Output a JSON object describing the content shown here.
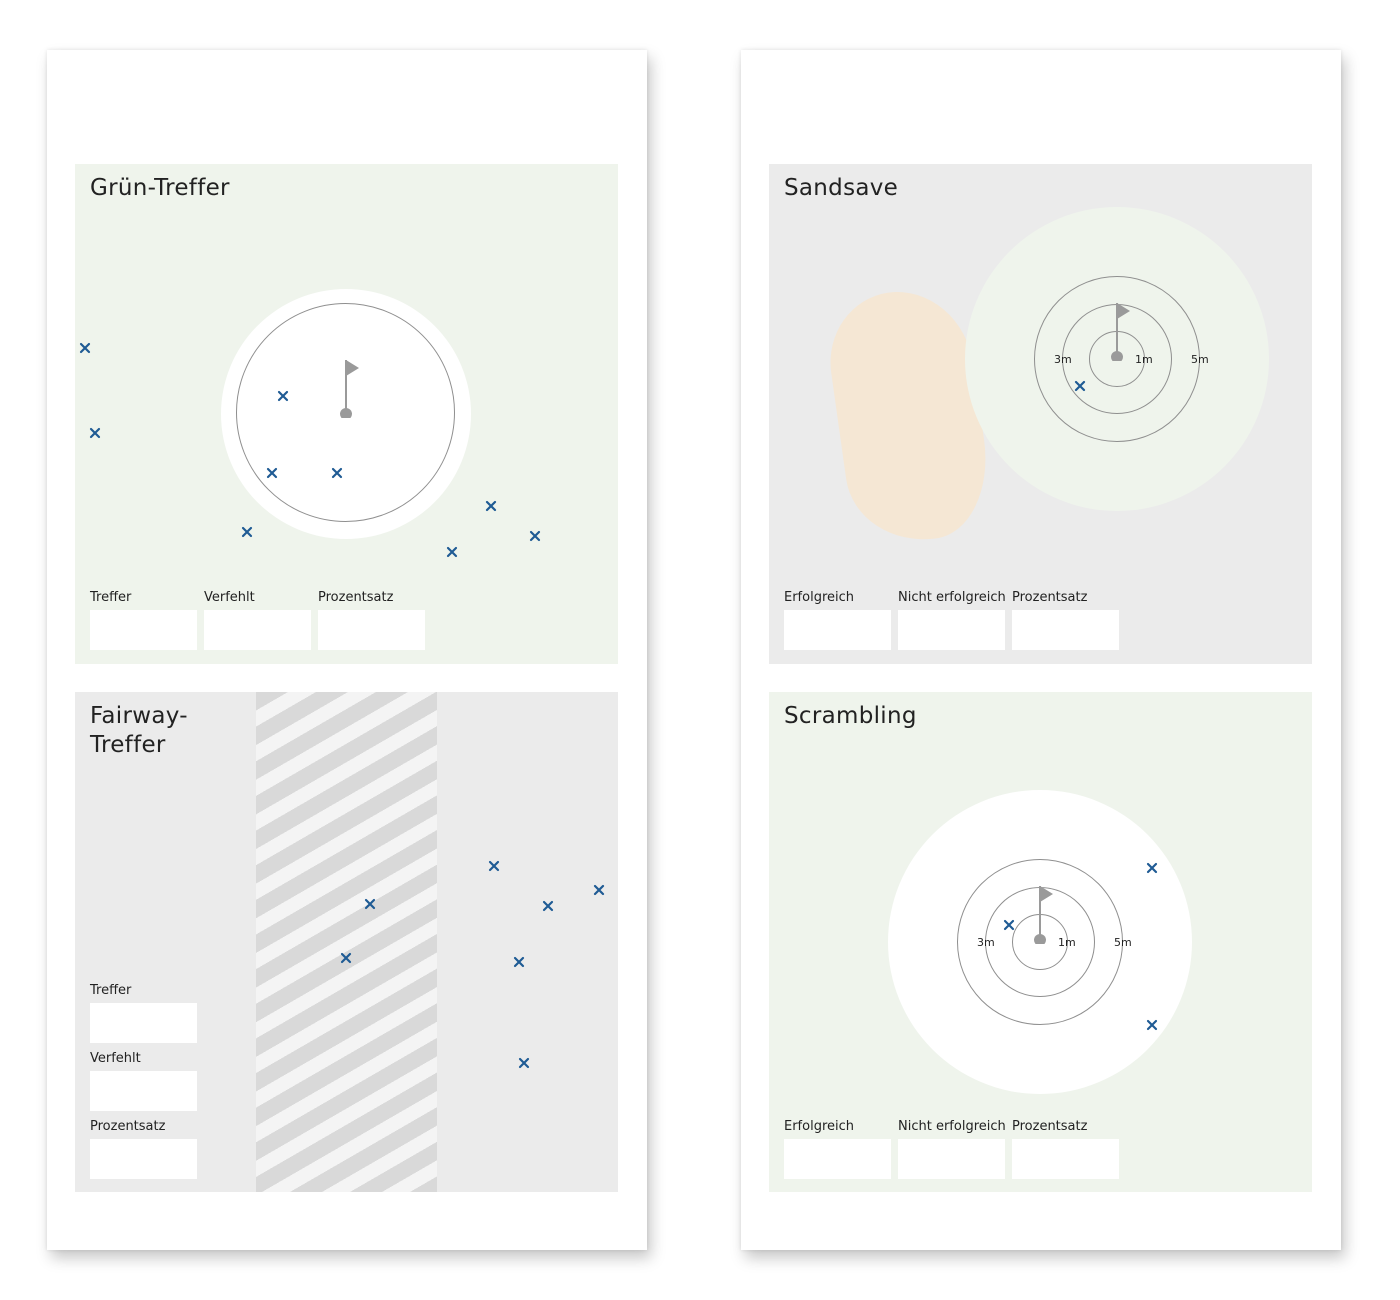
{
  "colors": {
    "marker": "#1f5b94",
    "green_panel": "#eff4ec",
    "grey_panel": "#ebebeb",
    "bunker_sand": "#f5e7d4",
    "ring_line": "#8f8f8f",
    "fairway_stripe": "#d9d9d9"
  },
  "icons": {
    "marker": "x-icon",
    "flag": "flag-icon"
  },
  "gruen_treffer": {
    "title": "Grün-Treffer",
    "fields": [
      {
        "label": "Treffer",
        "value": ""
      },
      {
        "label": "Verfehlt",
        "value": ""
      },
      {
        "label": "Prozentsatz",
        "value": ""
      }
    ]
  },
  "fairway_treffer": {
    "title": "Fairway-Treffer",
    "fields": [
      {
        "label": "Treffer",
        "value": ""
      },
      {
        "label": "Verfehlt",
        "value": ""
      },
      {
        "label": "Prozentsatz",
        "value": ""
      }
    ]
  },
  "sandsave": {
    "title": "Sandsave",
    "rings": [
      "1m",
      "3m",
      "5m"
    ],
    "fields": [
      {
        "label": "Erfolgreich",
        "value": ""
      },
      {
        "label": "Nicht erfolgreich",
        "value": ""
      },
      {
        "label": "Prozentsatz",
        "value": ""
      }
    ]
  },
  "scrambling": {
    "title": "Scrambling",
    "rings": [
      "1m",
      "3m",
      "5m"
    ],
    "fields": [
      {
        "label": "Erfolgreich",
        "value": ""
      },
      {
        "label": "Nicht erfolgreich",
        "value": ""
      },
      {
        "label": "Prozentsatz",
        "value": ""
      }
    ]
  }
}
